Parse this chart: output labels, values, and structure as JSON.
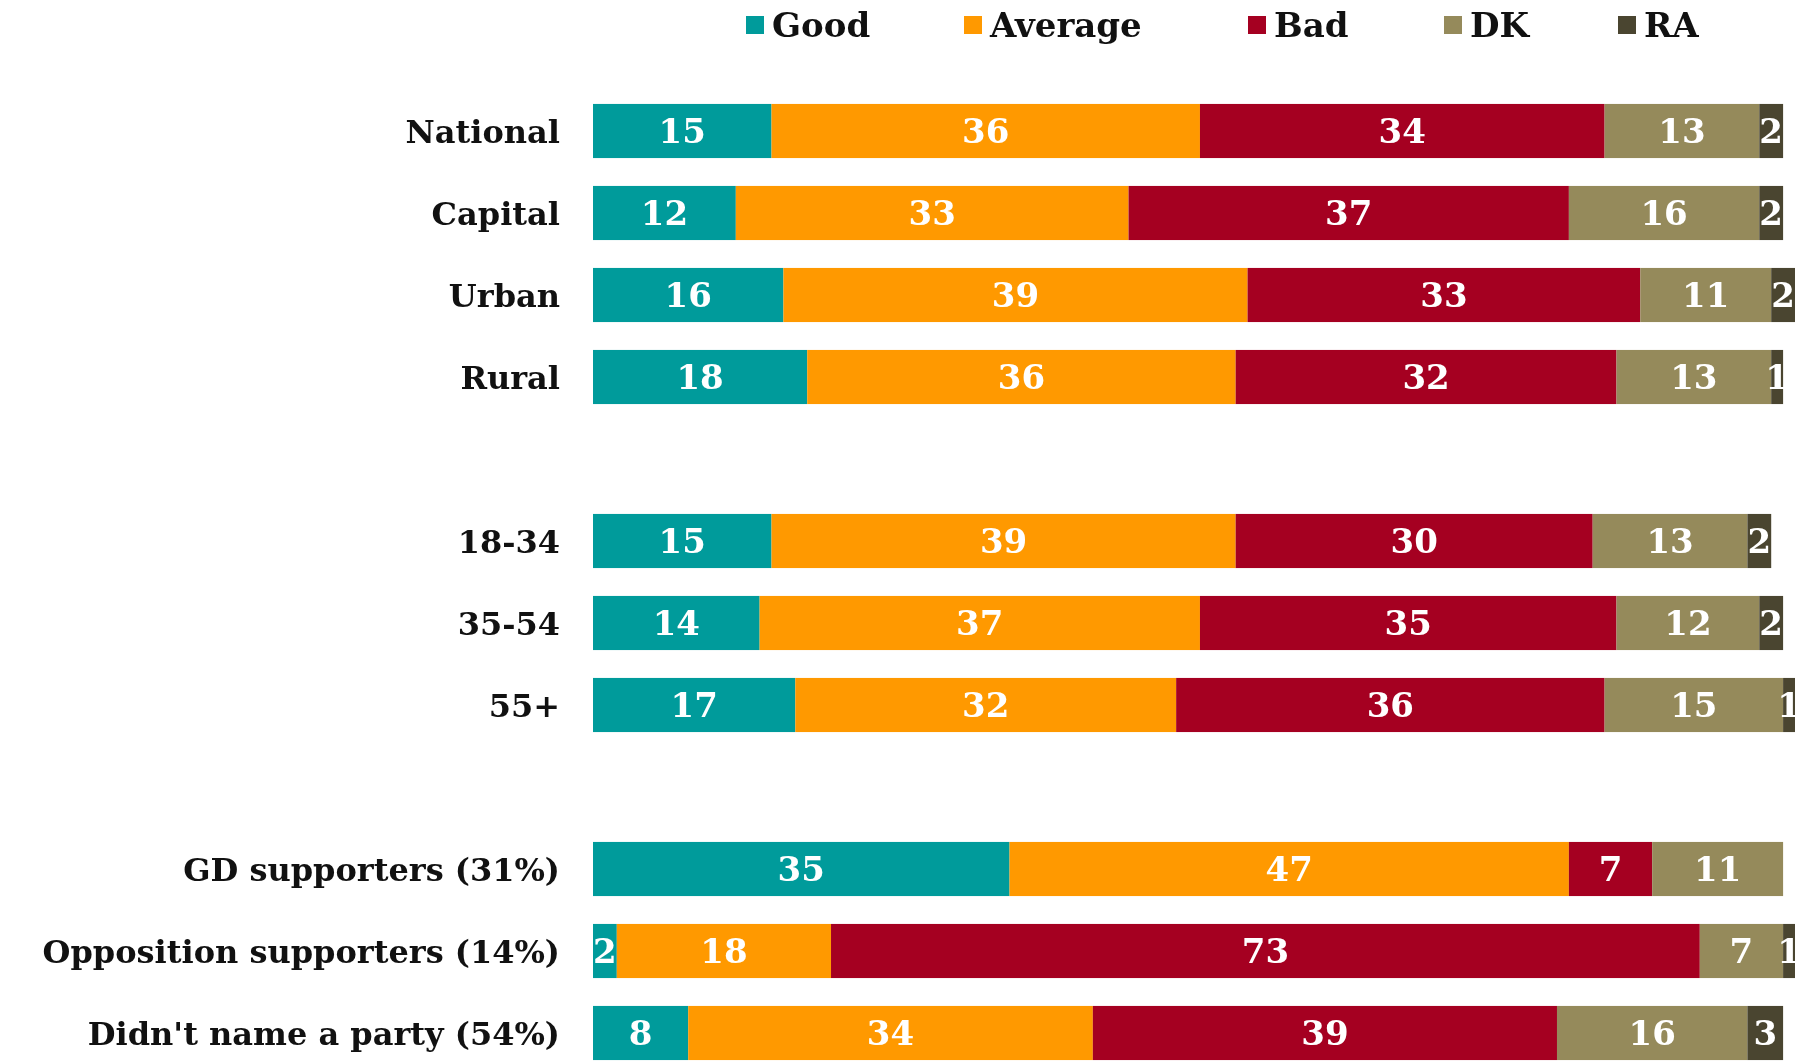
{
  "chart_data": {
    "type": "bar",
    "orientation": "horizontal",
    "stacked": true,
    "data_labels": true,
    "legend": "top",
    "categories": [
      "National",
      "Capital",
      "Urban",
      "Rural",
      null,
      "18-34",
      "35-54",
      "55+",
      null,
      "GD supporters (31%)",
      "Opposition supporters (14%)",
      "Didn't name a party  (54%)"
    ],
    "series": [
      {
        "name": "Good",
        "color": "#009b9b",
        "values": [
          15,
          12,
          16,
          18,
          null,
          15,
          14,
          17,
          null,
          35,
          2,
          8
        ]
      },
      {
        "name": "Average",
        "color": "#ff9900",
        "values": [
          36,
          33,
          39,
          36,
          null,
          39,
          37,
          32,
          null,
          47,
          18,
          34
        ]
      },
      {
        "name": "Bad",
        "color": "#a50021",
        "values": [
          34,
          37,
          33,
          32,
          null,
          30,
          35,
          36,
          null,
          7,
          73,
          39
        ]
      },
      {
        "name": "DK",
        "color": "#958a5b",
        "values": [
          13,
          16,
          11,
          13,
          null,
          13,
          12,
          15,
          null,
          11,
          7,
          16
        ]
      },
      {
        "name": "RA",
        "color": "#4a4530",
        "values": [
          2,
          2,
          2,
          1,
          null,
          2,
          2,
          1,
          null,
          null,
          1,
          3
        ]
      }
    ]
  }
}
